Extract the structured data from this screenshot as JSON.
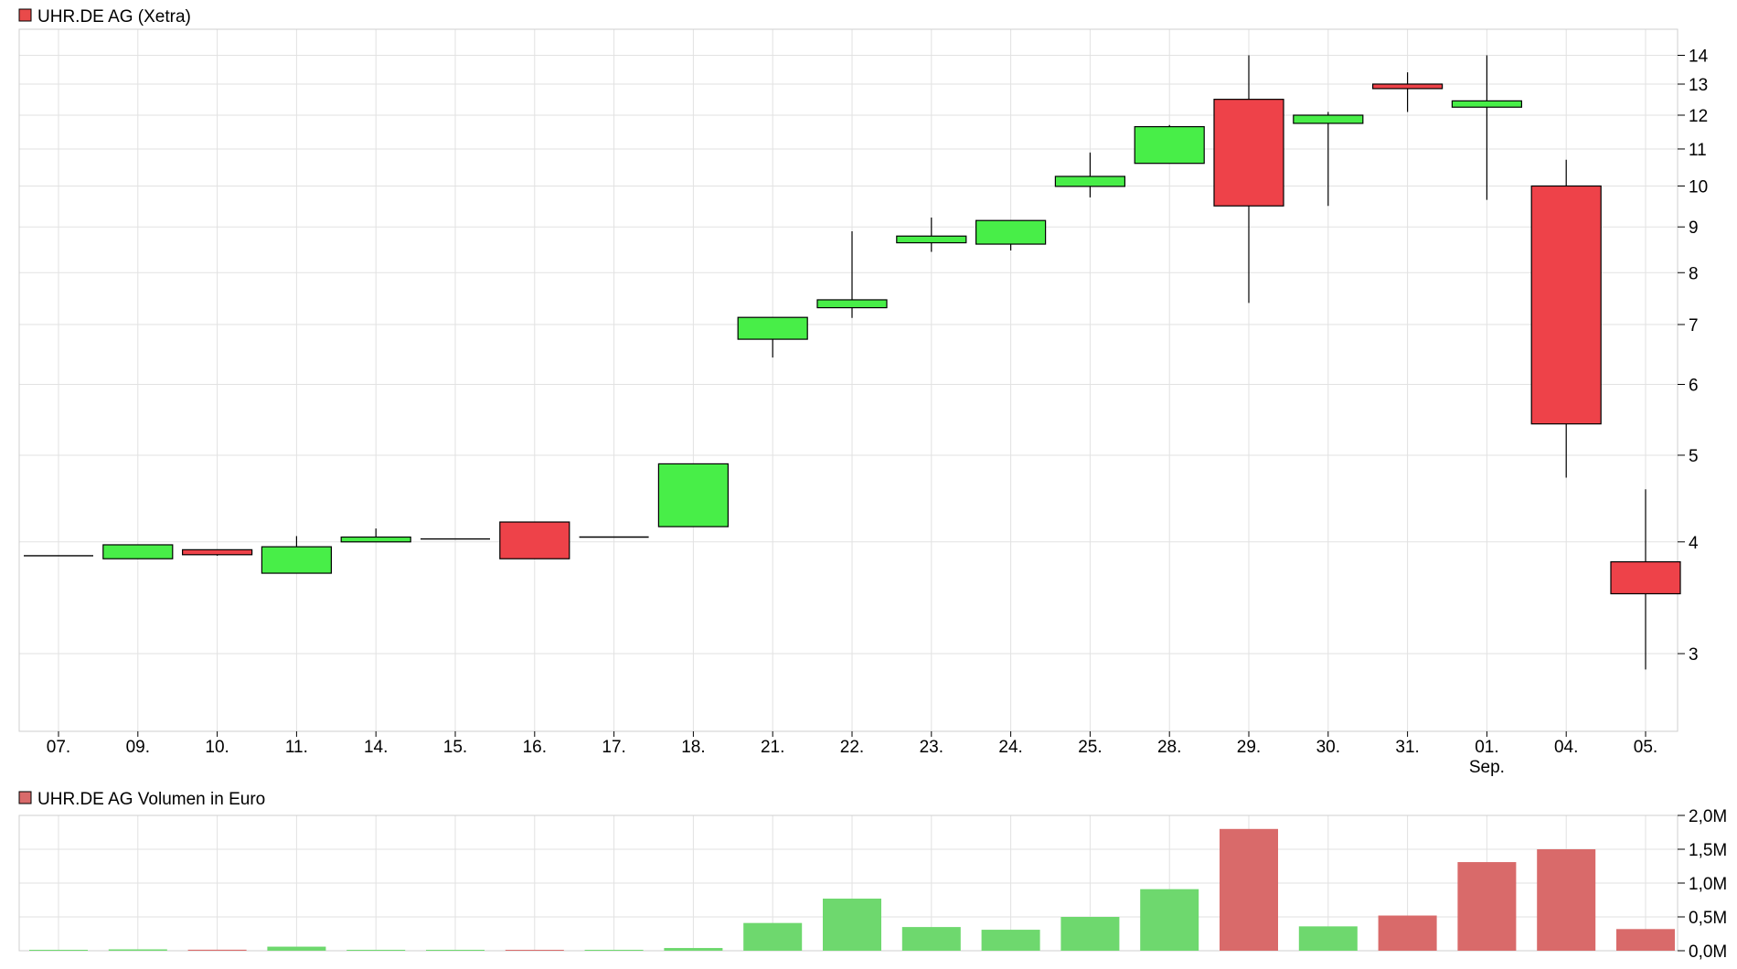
{
  "chart_data": [
    {
      "type": "candlestick",
      "title": "UHR.DE AG (Xetra)",
      "legend_color": "#e94a4a",
      "up_color": "#48ee48",
      "down_color": "#ee4249",
      "categories": [
        "07.",
        "09.",
        "10.",
        "11.",
        "14.",
        "15.",
        "16.",
        "17.",
        "18.",
        "21.",
        "22.",
        "23.",
        "24.",
        "25.",
        "28.",
        "29.",
        "30.",
        "31.",
        "01.",
        "04.",
        "05."
      ],
      "month_label": {
        "category_index": 18,
        "text": "Sep."
      },
      "scale": "log",
      "ylim": [
        2.6,
        14.8
      ],
      "yticks": [
        3,
        4,
        5,
        6,
        7,
        8,
        9,
        10,
        11,
        12,
        13,
        14
      ],
      "grid": true,
      "ohlc": [
        {
          "open": 3.86,
          "high": 3.86,
          "low": 3.86,
          "close": 3.86
        },
        {
          "open": 3.83,
          "high": 3.97,
          "low": 3.83,
          "close": 3.97
        },
        {
          "open": 3.92,
          "high": 3.92,
          "low": 3.86,
          "close": 3.87
        },
        {
          "open": 3.69,
          "high": 4.06,
          "low": 3.69,
          "close": 3.95
        },
        {
          "open": 4.0,
          "high": 4.14,
          "low": 4.0,
          "close": 4.05
        },
        {
          "open": 4.03,
          "high": 4.03,
          "low": 4.03,
          "close": 4.03
        },
        {
          "open": 4.21,
          "high": 4.21,
          "low": 3.83,
          "close": 3.83
        },
        {
          "open": 4.05,
          "high": 4.05,
          "low": 4.05,
          "close": 4.05
        },
        {
          "open": 4.16,
          "high": 4.89,
          "low": 4.16,
          "close": 4.89
        },
        {
          "open": 6.74,
          "high": 7.13,
          "low": 6.43,
          "close": 7.13
        },
        {
          "open": 7.31,
          "high": 8.9,
          "low": 7.12,
          "close": 7.46
        },
        {
          "open": 8.64,
          "high": 9.22,
          "low": 8.44,
          "close": 8.79
        },
        {
          "open": 8.61,
          "high": 9.15,
          "low": 8.47,
          "close": 9.15
        },
        {
          "open": 9.99,
          "high": 10.9,
          "low": 9.71,
          "close": 10.25
        },
        {
          "open": 10.6,
          "high": 11.7,
          "low": 10.6,
          "close": 11.65
        },
        {
          "open": 12.5,
          "high": 14.0,
          "low": 7.4,
          "close": 9.5
        },
        {
          "open": 11.75,
          "high": 12.1,
          "low": 9.5,
          "close": 12.0
        },
        {
          "open": 13.0,
          "high": 13.4,
          "low": 12.1,
          "close": 12.85
        },
        {
          "open": 12.25,
          "high": 14.0,
          "low": 9.65,
          "close": 12.45
        },
        {
          "open": 10.0,
          "high": 10.7,
          "low": 4.72,
          "close": 5.42
        },
        {
          "open": 3.8,
          "high": 4.58,
          "low": 2.88,
          "close": 3.5
        }
      ]
    },
    {
      "type": "bar",
      "title": "UHR.DE AG Volumen in Euro",
      "legend_color": "#d96a6a",
      "up_color": "#6ed86e",
      "down_color": "#d96a6a",
      "categories": [
        "07.",
        "09.",
        "10.",
        "11.",
        "14.",
        "15.",
        "16.",
        "17.",
        "18.",
        "21.",
        "22.",
        "23.",
        "24.",
        "25.",
        "28.",
        "29.",
        "30.",
        "31.",
        "01.",
        "04.",
        "05."
      ],
      "values": [
        0.005,
        0.02,
        0.015,
        0.06,
        0.005,
        0.0,
        0.01,
        0.005,
        0.04,
        0.41,
        0.77,
        0.35,
        0.31,
        0.5,
        0.91,
        1.8,
        0.36,
        0.52,
        1.31,
        1.5,
        0.32
      ],
      "directions": [
        "up",
        "up",
        "down",
        "up",
        "up",
        "up",
        "down",
        "up",
        "up",
        "up",
        "up",
        "up",
        "up",
        "up",
        "up",
        "down",
        "up",
        "down",
        "down",
        "down",
        "down"
      ],
      "unit": "M",
      "ylim": [
        0,
        2.0
      ],
      "yticks": [
        "0,0M",
        "0,5M",
        "1,0M",
        "1,5M",
        "2,0M"
      ],
      "grid": true
    }
  ]
}
